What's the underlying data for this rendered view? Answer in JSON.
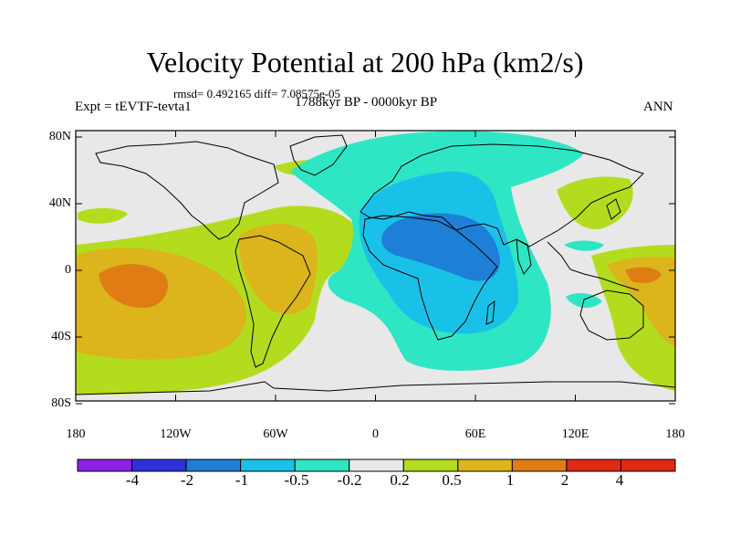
{
  "title": "Velocity Potential at 200 hPa (km2/s)",
  "stats": "rmsd= 0.492165 diff= 7.08575e-05",
  "experiment": "Expt = tEVTF-tevta1",
  "period": "1788kyr BP - 0000kyr BP",
  "season": "ANN",
  "lat_ticks": [
    "80N",
    "40N",
    "0",
    "40S",
    "80S"
  ],
  "lon_ticks": [
    "180",
    "120W",
    "60W",
    "0",
    "60E",
    "120E",
    "180"
  ],
  "colorbar": {
    "labels": [
      "-4",
      "-2",
      "-1",
      "-0.5",
      "-0.2",
      "0.2",
      "0.5",
      "1",
      "2",
      "4"
    ],
    "colors": [
      "#8a22e6",
      "#3030d8",
      "#1e7fd6",
      "#19c1e8",
      "#2ee6c3",
      "#e8e8e8",
      "#b4dc1e",
      "#dcb41c",
      "#e07c14",
      "#e02a14"
    ]
  }
}
